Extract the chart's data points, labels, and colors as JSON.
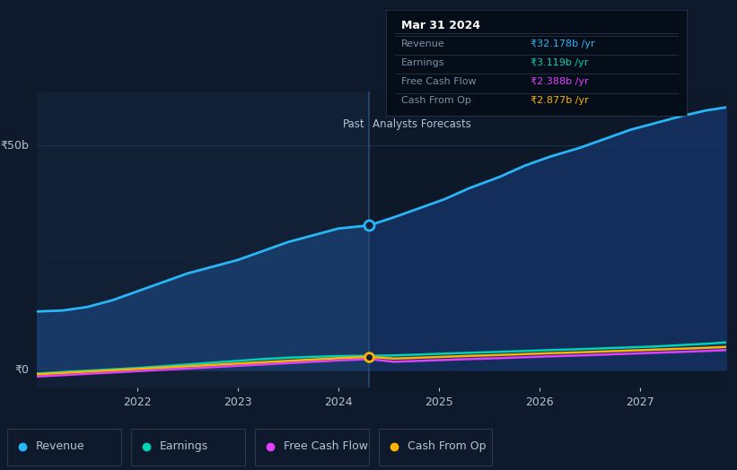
{
  "bg_color": "#0e1a2b",
  "plot_bg_past": "#122035",
  "plot_bg_future": "#0d1829",
  "ylabel_text": "₹50b",
  "ylabel0_text": "₹0",
  "past_label": "Past",
  "forecast_label": "Analysts Forecasts",
  "divider_x": 2024.3,
  "x_ticks": [
    2022,
    2023,
    2024,
    2025,
    2026,
    2027
  ],
  "ylim": [
    -4,
    62
  ],
  "xlim": [
    2021.0,
    2027.85
  ],
  "revenue_color": "#29b6f6",
  "revenue_fill_past": "#1a3d6e",
  "revenue_fill_future": "#163264",
  "earnings_color": "#00d4b4",
  "fcf_color": "#e040fb",
  "cashop_color": "#ffb300",
  "revenue_x": [
    2021.0,
    2021.25,
    2021.5,
    2021.75,
    2022.0,
    2022.25,
    2022.5,
    2022.75,
    2023.0,
    2023.25,
    2023.5,
    2023.75,
    2024.0,
    2024.3,
    2024.55,
    2024.8,
    2025.05,
    2025.3,
    2025.6,
    2025.85,
    2026.1,
    2026.4,
    2026.65,
    2026.9,
    2027.15,
    2027.4,
    2027.65,
    2027.85
  ],
  "revenue_y": [
    13.0,
    13.2,
    14.0,
    15.5,
    17.5,
    19.5,
    21.5,
    23.0,
    24.5,
    26.5,
    28.5,
    30.0,
    31.5,
    32.178,
    34.0,
    36.0,
    38.0,
    40.5,
    43.0,
    45.5,
    47.5,
    49.5,
    51.5,
    53.5,
    55.0,
    56.5,
    57.8,
    58.5
  ],
  "earnings_x": [
    2021.0,
    2021.25,
    2021.5,
    2021.75,
    2022.0,
    2022.25,
    2022.5,
    2022.75,
    2023.0,
    2023.25,
    2023.5,
    2023.75,
    2024.0,
    2024.3,
    2024.55,
    2024.8,
    2025.05,
    2025.3,
    2025.6,
    2025.85,
    2026.1,
    2026.4,
    2026.65,
    2026.9,
    2027.15,
    2027.4,
    2027.65,
    2027.85
  ],
  "earnings_y": [
    -0.8,
    -0.5,
    -0.2,
    0.1,
    0.4,
    0.8,
    1.2,
    1.6,
    2.0,
    2.4,
    2.7,
    2.9,
    3.05,
    3.119,
    3.2,
    3.4,
    3.6,
    3.8,
    4.0,
    4.2,
    4.4,
    4.6,
    4.8,
    5.0,
    5.2,
    5.5,
    5.8,
    6.1
  ],
  "fcf_x": [
    2021.0,
    2021.25,
    2021.5,
    2021.75,
    2022.0,
    2022.25,
    2022.5,
    2022.75,
    2023.0,
    2023.25,
    2023.5,
    2023.75,
    2024.0,
    2024.3,
    2024.55,
    2024.8,
    2025.05,
    2025.3,
    2025.6,
    2025.85,
    2026.1,
    2026.4,
    2026.65,
    2026.9,
    2027.15,
    2027.4,
    2027.65,
    2027.85
  ],
  "fcf_y": [
    -1.5,
    -1.2,
    -0.9,
    -0.6,
    -0.3,
    0.0,
    0.3,
    0.6,
    0.9,
    1.2,
    1.5,
    1.8,
    2.1,
    2.388,
    1.8,
    2.0,
    2.2,
    2.4,
    2.6,
    2.8,
    3.0,
    3.2,
    3.4,
    3.6,
    3.8,
    4.0,
    4.2,
    4.4
  ],
  "cashop_x": [
    2021.0,
    2021.25,
    2021.5,
    2021.75,
    2022.0,
    2022.25,
    2022.5,
    2022.75,
    2023.0,
    2023.25,
    2023.5,
    2023.75,
    2024.0,
    2024.3,
    2024.55,
    2024.8,
    2025.05,
    2025.3,
    2025.6,
    2025.85,
    2026.1,
    2026.4,
    2026.65,
    2026.9,
    2027.15,
    2027.4,
    2027.65,
    2027.85
  ],
  "cashop_y": [
    -1.0,
    -0.7,
    -0.4,
    -0.1,
    0.2,
    0.5,
    0.8,
    1.1,
    1.4,
    1.7,
    2.0,
    2.3,
    2.6,
    2.877,
    2.5,
    2.7,
    2.9,
    3.1,
    3.3,
    3.5,
    3.7,
    3.9,
    4.1,
    4.3,
    4.5,
    4.7,
    4.9,
    5.1
  ],
  "divider_rev_y": 32.178,
  "divider_cashop_y": 2.877,
  "tooltip_title": "Mar 31 2024",
  "tooltip_rows": [
    {
      "label": "Revenue",
      "value": "₹32.178b /yr",
      "color": "#29b6f6"
    },
    {
      "label": "Earnings",
      "value": "₹3.119b /yr",
      "color": "#00d4b4"
    },
    {
      "label": "Free Cash Flow",
      "value": "₹2.388b /yr",
      "color": "#e040fb"
    },
    {
      "label": "Cash From Op",
      "value": "₹2.877b /yr",
      "color": "#ffb300"
    }
  ],
  "legend_items": [
    {
      "label": "Revenue",
      "color": "#29b6f6"
    },
    {
      "label": "Earnings",
      "color": "#00d4b4"
    },
    {
      "label": "Free Cash Flow",
      "color": "#e040fb"
    },
    {
      "label": "Cash From Op",
      "color": "#ffb300"
    }
  ],
  "font_color": "#b0c4d8",
  "grid_color": "#1e3352",
  "divider_color": "#2a4a6e",
  "tooltip_bg": "#050e18",
  "tooltip_border": "#2a3a50",
  "label_color": "#7a8fa8"
}
